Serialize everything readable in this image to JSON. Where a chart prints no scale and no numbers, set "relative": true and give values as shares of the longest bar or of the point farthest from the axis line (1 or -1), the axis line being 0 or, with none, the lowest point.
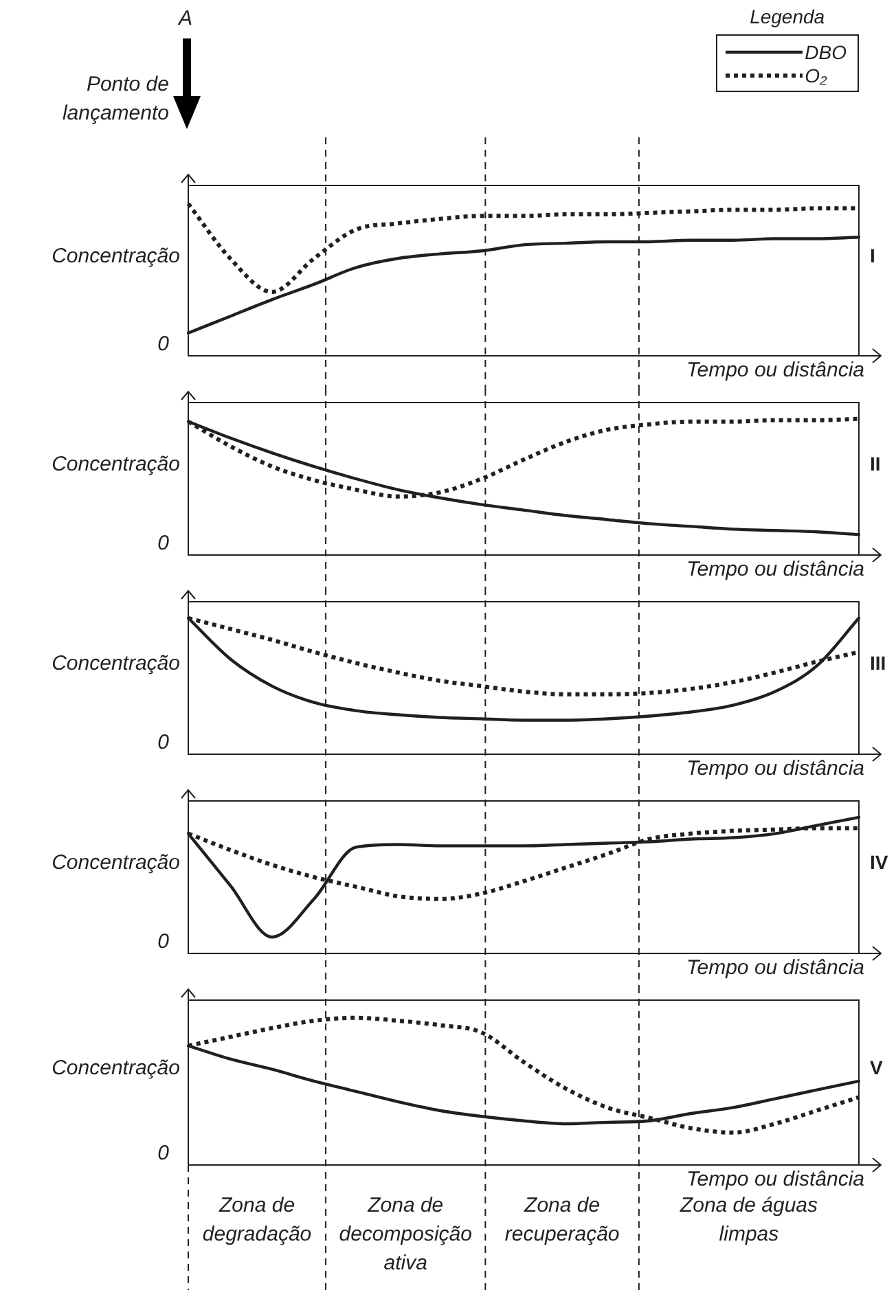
{
  "chart_data": [
    {
      "type": "line",
      "relative": true,
      "legend": "top right",
      "legend_title": "Legenda",
      "ylabel": "Concentração",
      "xlabel": "Tempo ou distância",
      "marker": "none",
      "annotations": [
        "I",
        "0",
        "A",
        "Ponto de lançamento"
      ],
      "categories": [
        null,
        null,
        null,
        null,
        null,
        null,
        null,
        null,
        null,
        null,
        null,
        null,
        null,
        null,
        null,
        null,
        null
      ],
      "series": [
        {
          "name": "DBO",
          "color": "#231f20",
          "line_style": "solid",
          "values": [
            0.15,
            0.26,
            0.37,
            0.47,
            0.58,
            0.64,
            0.67,
            0.69,
            0.73,
            0.74,
            0.75,
            0.75,
            0.76,
            0.76,
            0.77,
            0.77,
            0.78
          ]
        },
        {
          "name": "O₂",
          "color": "#231f20",
          "line_style": "dotted",
          "values": [
            1,
            0.64,
            0.42,
            0.64,
            0.83,
            0.87,
            0.9,
            0.92,
            0.92,
            0.93,
            0.93,
            0.94,
            0.95,
            0.96,
            0.96,
            0.97,
            0.97
          ]
        }
      ]
    },
    {
      "type": "line",
      "relative": true,
      "ylabel": "Concentração",
      "xlabel": "Tempo ou distância",
      "marker": "none",
      "legend": false,
      "annotations": [
        "II",
        "0"
      ],
      "categories": [
        null,
        null,
        null,
        null,
        null,
        null,
        null,
        null,
        null,
        null,
        null,
        null,
        null,
        null,
        null,
        null,
        null
      ],
      "series": [
        {
          "color": "#231f20",
          "line_style": "solid",
          "values": [
            0.98,
            0.86,
            0.75,
            0.65,
            0.56,
            0.48,
            0.42,
            0.37,
            0.33,
            0.29,
            0.26,
            0.23,
            0.21,
            0.19,
            0.18,
            0.17,
            0.15
          ]
        },
        {
          "color": "#231f20",
          "line_style": "dotted",
          "values": [
            0.98,
            0.8,
            0.65,
            0.55,
            0.48,
            0.43,
            0.46,
            0.56,
            0.7,
            0.83,
            0.92,
            0.96,
            0.98,
            0.98,
            0.99,
            0.99,
            1
          ]
        }
      ]
    },
    {
      "type": "line",
      "relative": true,
      "ylabel": "Concentração",
      "xlabel": "Tempo ou distância",
      "marker": "none",
      "legend": false,
      "annotations": [
        "III",
        "0"
      ],
      "categories": [
        null,
        null,
        null,
        null,
        null,
        null,
        null,
        null,
        null,
        null,
        null,
        null,
        null,
        null,
        null,
        null,
        null
      ],
      "series": [
        {
          "color": "#231f20",
          "line_style": "solid",
          "values": [
            1,
            0.7,
            0.5,
            0.38,
            0.32,
            0.29,
            0.27,
            0.26,
            0.25,
            0.25,
            0.26,
            0.28,
            0.31,
            0.36,
            0.46,
            0.65,
            1
          ]
        },
        {
          "color": "#231f20",
          "line_style": "dotted",
          "values": [
            1,
            0.92,
            0.84,
            0.75,
            0.67,
            0.6,
            0.54,
            0.5,
            0.46,
            0.44,
            0.44,
            0.45,
            0.48,
            0.53,
            0.6,
            0.68,
            0.75
          ]
        }
      ]
    },
    {
      "type": "line",
      "relative": true,
      "ylabel": "Concentração",
      "xlabel": "Tempo ou distância",
      "marker": "none",
      "legend": false,
      "annotations": [
        "IV",
        "0"
      ],
      "categories": [
        null,
        null,
        null,
        null,
        null,
        null,
        null,
        null,
        null,
        null,
        null,
        null,
        null,
        null,
        null,
        null,
        null
      ],
      "series": [
        {
          "color": "#231f20",
          "line_style": "solid",
          "values": [
            0.88,
            0.5,
            0.12,
            0.4,
            0.78,
            0.8,
            0.79,
            0.79,
            0.79,
            0.8,
            0.81,
            0.82,
            0.84,
            0.85,
            0.88,
            0.94,
            1
          ]
        },
        {
          "color": "#231f20",
          "line_style": "dotted",
          "values": [
            0.88,
            0.76,
            0.65,
            0.56,
            0.49,
            0.42,
            0.4,
            0.44,
            0.53,
            0.63,
            0.73,
            0.84,
            0.88,
            0.9,
            0.91,
            0.92,
            0.92
          ]
        }
      ]
    },
    {
      "type": "line",
      "relative": true,
      "ylabel": "Concentração",
      "xlabel": "Tempo ou distância",
      "marker": "none",
      "legend": false,
      "annotations": [
        "V",
        "0",
        "Zona de degradação",
        "Zona de decomposição ativa",
        "Zona de recuperação",
        "Zona de águas limpas"
      ],
      "categories": [
        null,
        null,
        null,
        null,
        null,
        null,
        null,
        null,
        null,
        null,
        null,
        null,
        null,
        null,
        null,
        null,
        null
      ],
      "series": [
        {
          "color": "#231f20",
          "line_style": "solid",
          "values": [
            0.81,
            0.72,
            0.65,
            0.57,
            0.5,
            0.43,
            0.37,
            0.33,
            0.3,
            0.28,
            0.29,
            0.3,
            0.35,
            0.39,
            0.45,
            0.51,
            0.57
          ]
        },
        {
          "color": "#231f20",
          "line_style": "dotted",
          "values": [
            0.81,
            0.87,
            0.93,
            0.98,
            1,
            0.98,
            0.95,
            0.9,
            0.7,
            0.52,
            0.39,
            0.32,
            0.25,
            0.22,
            0.28,
            0.37,
            0.46
          ]
        }
      ]
    }
  ]
}
